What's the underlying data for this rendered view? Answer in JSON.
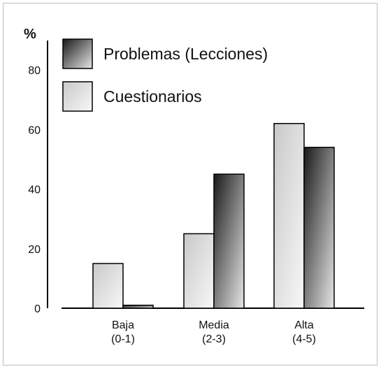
{
  "chart_data": {
    "type": "bar",
    "title": "",
    "xlabel": "",
    "ylabel": "%",
    "ylim": [
      0,
      80
    ],
    "yticks": [
      "0",
      "20",
      "40",
      "60",
      "80"
    ],
    "categories": [
      {
        "line1": "Baja",
        "line2": "(0-1)"
      },
      {
        "line1": "Media",
        "line2": "(2-3)"
      },
      {
        "line1": "Alta",
        "line2": "(4-5)"
      }
    ],
    "series": [
      {
        "name": "Cuestionarios",
        "values": [
          15,
          25,
          62
        ],
        "fill": "light-gradient"
      },
      {
        "name": "Problemas (Lecciones)",
        "values": [
          1,
          45,
          54
        ],
        "fill": "dark-gradient"
      }
    ],
    "legend": {
      "placement": "top-left",
      "items": [
        "Problemas (Lecciones)",
        "Cuestionarios"
      ]
    },
    "grid": false,
    "colors": {
      "dark_start": "#1a1a1a",
      "dark_end": "#e6e6e6",
      "light_start": "#c9c9c9",
      "light_end": "#f7f7f7",
      "axis": "#000000"
    }
  }
}
